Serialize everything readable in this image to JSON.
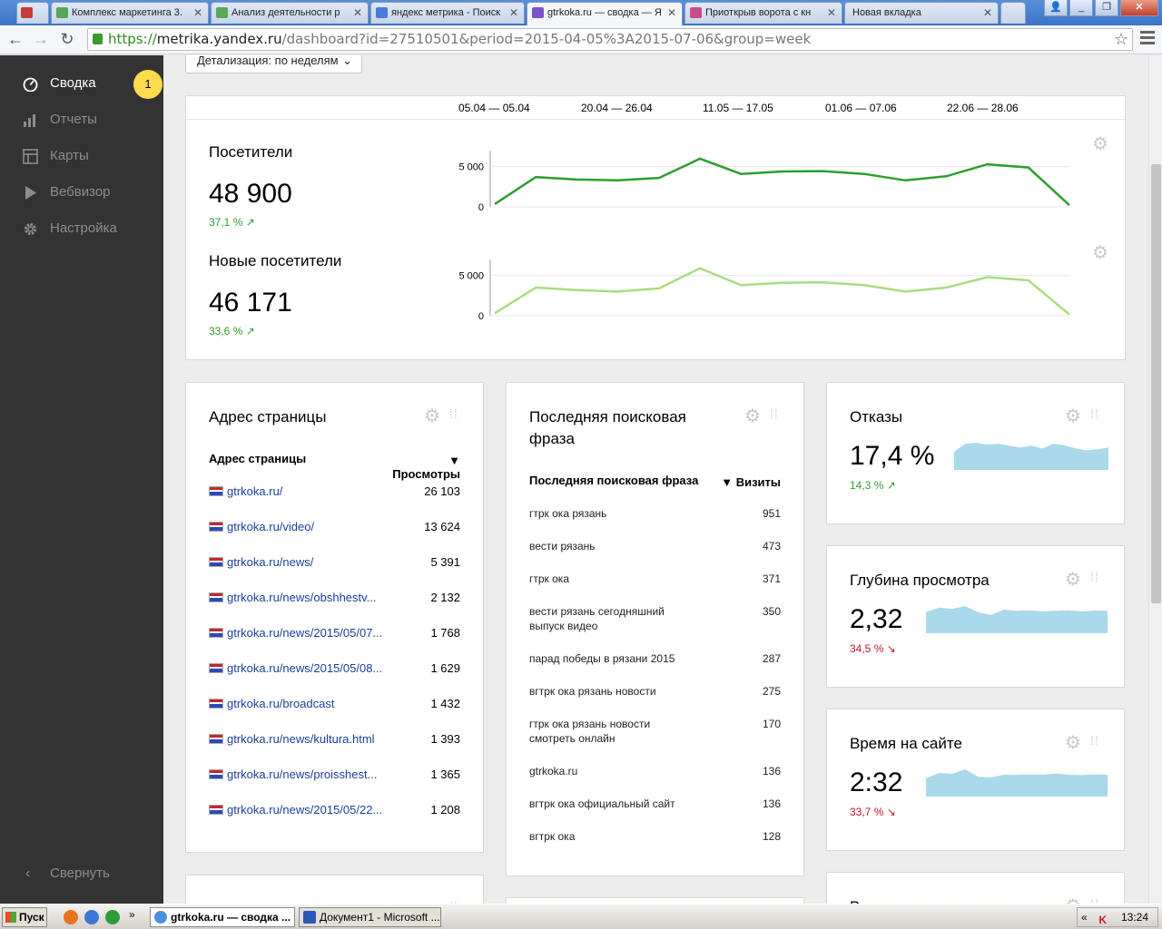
{
  "browser": {
    "tabs": [
      {
        "label": "Комплекс маркетинга 3.",
        "favicon_color": "#c63b3b"
      },
      {
        "label": "Анализ деятельности р",
        "favicon_color": "#58a858"
      },
      {
        "label": "яндекс метрика - Поиск",
        "favicon_color": "#4a7bd6"
      },
      {
        "label": "gtrkoka.ru — сводка — Я",
        "favicon_color": "#7b55c7",
        "active": true
      },
      {
        "label": "Приоткрыв ворота с кн",
        "favicon_color": "#c94a8e"
      },
      {
        "label": "Новая вкладка",
        "favicon_color": ""
      }
    ],
    "url_https": "https://",
    "url_host": "metrika.yandex.ru",
    "url_path": "/dashboard?id=27510501&period=2015-04-05%3A2015-07-06&group=week"
  },
  "sidebar": {
    "items": [
      {
        "label": "Сводка",
        "icon": "gauge-icon"
      },
      {
        "label": "Отчеты",
        "icon": "bar-chart-icon"
      },
      {
        "label": "Карты",
        "icon": "map-icon"
      },
      {
        "label": "Вебвизор",
        "icon": "play-icon"
      },
      {
        "label": "Настройка",
        "icon": "gear-icon"
      }
    ],
    "badge": "1",
    "collapse_label": "Свернуть"
  },
  "dashboard": {
    "detail_label": "Детализация: по неделям",
    "week_labels": [
      "05.04 — 05.04",
      "20.04 — 26.04",
      "11.05 — 17.05",
      "01.06 — 07.06",
      "22.06 — 28.06"
    ],
    "visitors": {
      "title": "Посетители",
      "value": "48 900",
      "delta": "37,1 % ↗"
    },
    "new_visitors": {
      "title": "Новые посетители",
      "value": "46 171",
      "delta": "33,6 % ↗"
    }
  },
  "chart_data": [
    {
      "type": "line",
      "series": [
        {
          "name": "Посетители",
          "values": [
            350,
            3700,
            3400,
            3300,
            3600,
            6000,
            4100,
            4400,
            4450,
            4100,
            3300,
            3800,
            5300,
            4900,
            200
          ]
        }
      ],
      "yticks": [
        "5 000",
        "0"
      ],
      "ylim": [
        0,
        7000
      ],
      "color": "#2e9e2e"
    },
    {
      "type": "line",
      "series": [
        {
          "name": "Новые посетители",
          "values": [
            300,
            3500,
            3200,
            3000,
            3400,
            5900,
            3800,
            4100,
            4150,
            3800,
            3000,
            3500,
            4800,
            4400,
            150
          ]
        }
      ],
      "yticks": [
        "5 000",
        "0"
      ],
      "ylim": [
        0,
        7000
      ],
      "color": "#a9dd80"
    },
    {
      "type": "area",
      "series": [
        {
          "name": "Отказы",
          "values": [
            16.5,
            18.2,
            18.4,
            18,
            18.2,
            17.8,
            17.4,
            17.8,
            17.2,
            18.2,
            17.9,
            17.2,
            16.8,
            17,
            17.4
          ]
        }
      ],
      "color": "#a9d9ea"
    },
    {
      "type": "area",
      "series": [
        {
          "name": "Глубина просмотра",
          "values": [
            2.3,
            2.45,
            2.4,
            2.5,
            2.3,
            2.2,
            2.38,
            2.34,
            2.36,
            2.32,
            2.34,
            2.36,
            2.32,
            2.35,
            2.34
          ]
        }
      ],
      "color": "#a9d9ea"
    },
    {
      "type": "area",
      "series": [
        {
          "name": "Время на сайте",
          "values": [
            2.2,
            2.5,
            2.45,
            2.7,
            2.3,
            2.25,
            2.4,
            2.4,
            2.42,
            2.4,
            2.47,
            2.4,
            2.38,
            2.42,
            2.4
          ]
        }
      ],
      "color": "#a9d9ea"
    }
  ],
  "pages_widget": {
    "title": "Адрес страницы",
    "col1": "Адрес страницы",
    "col2": "▼ Просмотры",
    "rows": [
      {
        "url": "gtrkoka.ru/",
        "views": "26 103"
      },
      {
        "url": "gtrkoka.ru/video/",
        "views": "13 624"
      },
      {
        "url": "gtrkoka.ru/news/",
        "views": "5 391"
      },
      {
        "url": "gtrkoka.ru/news/obshhestv...",
        "views": "2 132"
      },
      {
        "url": "gtrkoka.ru/news/2015/05/07...",
        "views": "1 768"
      },
      {
        "url": "gtrkoka.ru/news/2015/05/08...",
        "views": "1 629"
      },
      {
        "url": "gtrkoka.ru/broadcast",
        "views": "1 432"
      },
      {
        "url": "gtrkoka.ru/news/kultura.html",
        "views": "1 393"
      },
      {
        "url": "gtrkoka.ru/news/proisshest...",
        "views": "1 365"
      },
      {
        "url": "gtrkoka.ru/news/2015/05/22...",
        "views": "1 208"
      }
    ]
  },
  "search_widget": {
    "title_line1": "Последняя поисковая",
    "title_line2": "фраза",
    "col1": "Последняя поисковая фраза",
    "col2": "▼ Визиты",
    "rows": [
      {
        "phrase": "гтрк ока рязань",
        "phrase2": "",
        "visits": "951"
      },
      {
        "phrase": "вести рязань",
        "phrase2": "",
        "visits": "473"
      },
      {
        "phrase": "гтрк ока",
        "phrase2": "",
        "visits": "371"
      },
      {
        "phrase": "вести рязань сегодняшний",
        "phrase2": "выпуск видео",
        "visits": "350"
      },
      {
        "phrase": "парад победы в рязани 2015",
        "phrase2": "",
        "visits": "287"
      },
      {
        "phrase": "вгтрк ока рязань новости",
        "phrase2": "",
        "visits": "275"
      },
      {
        "phrase": "гтрк ока рязань новости",
        "phrase2": "смотреть онлайн",
        "visits": "170"
      },
      {
        "phrase": "gtrkoka.ru",
        "phrase2": "",
        "visits": "136"
      },
      {
        "phrase": "вгтрк ока официальный сайт",
        "phrase2": "",
        "visits": "136"
      },
      {
        "phrase": "вгтрк ока",
        "phrase2": "",
        "visits": "128"
      }
    ]
  },
  "bounce": {
    "title": "Отказы",
    "value": "17,4 %",
    "delta": "14,3 % ↗"
  },
  "depth": {
    "title": "Глубина просмотра",
    "value": "2,32",
    "delta": "34,5 % ↘"
  },
  "time": {
    "title": "Время на сайте",
    "value": "2:32",
    "delta": "33,7 % ↘"
  },
  "partial_titles": {
    "bottom_right": "Возраст"
  },
  "taskbar": {
    "start_label": "Пуск",
    "tasks": [
      "gtrkoka.ru — сводка ...",
      "Документ1 - Microsoft ..."
    ],
    "tray_arrows": "«",
    "time": "13:24"
  }
}
